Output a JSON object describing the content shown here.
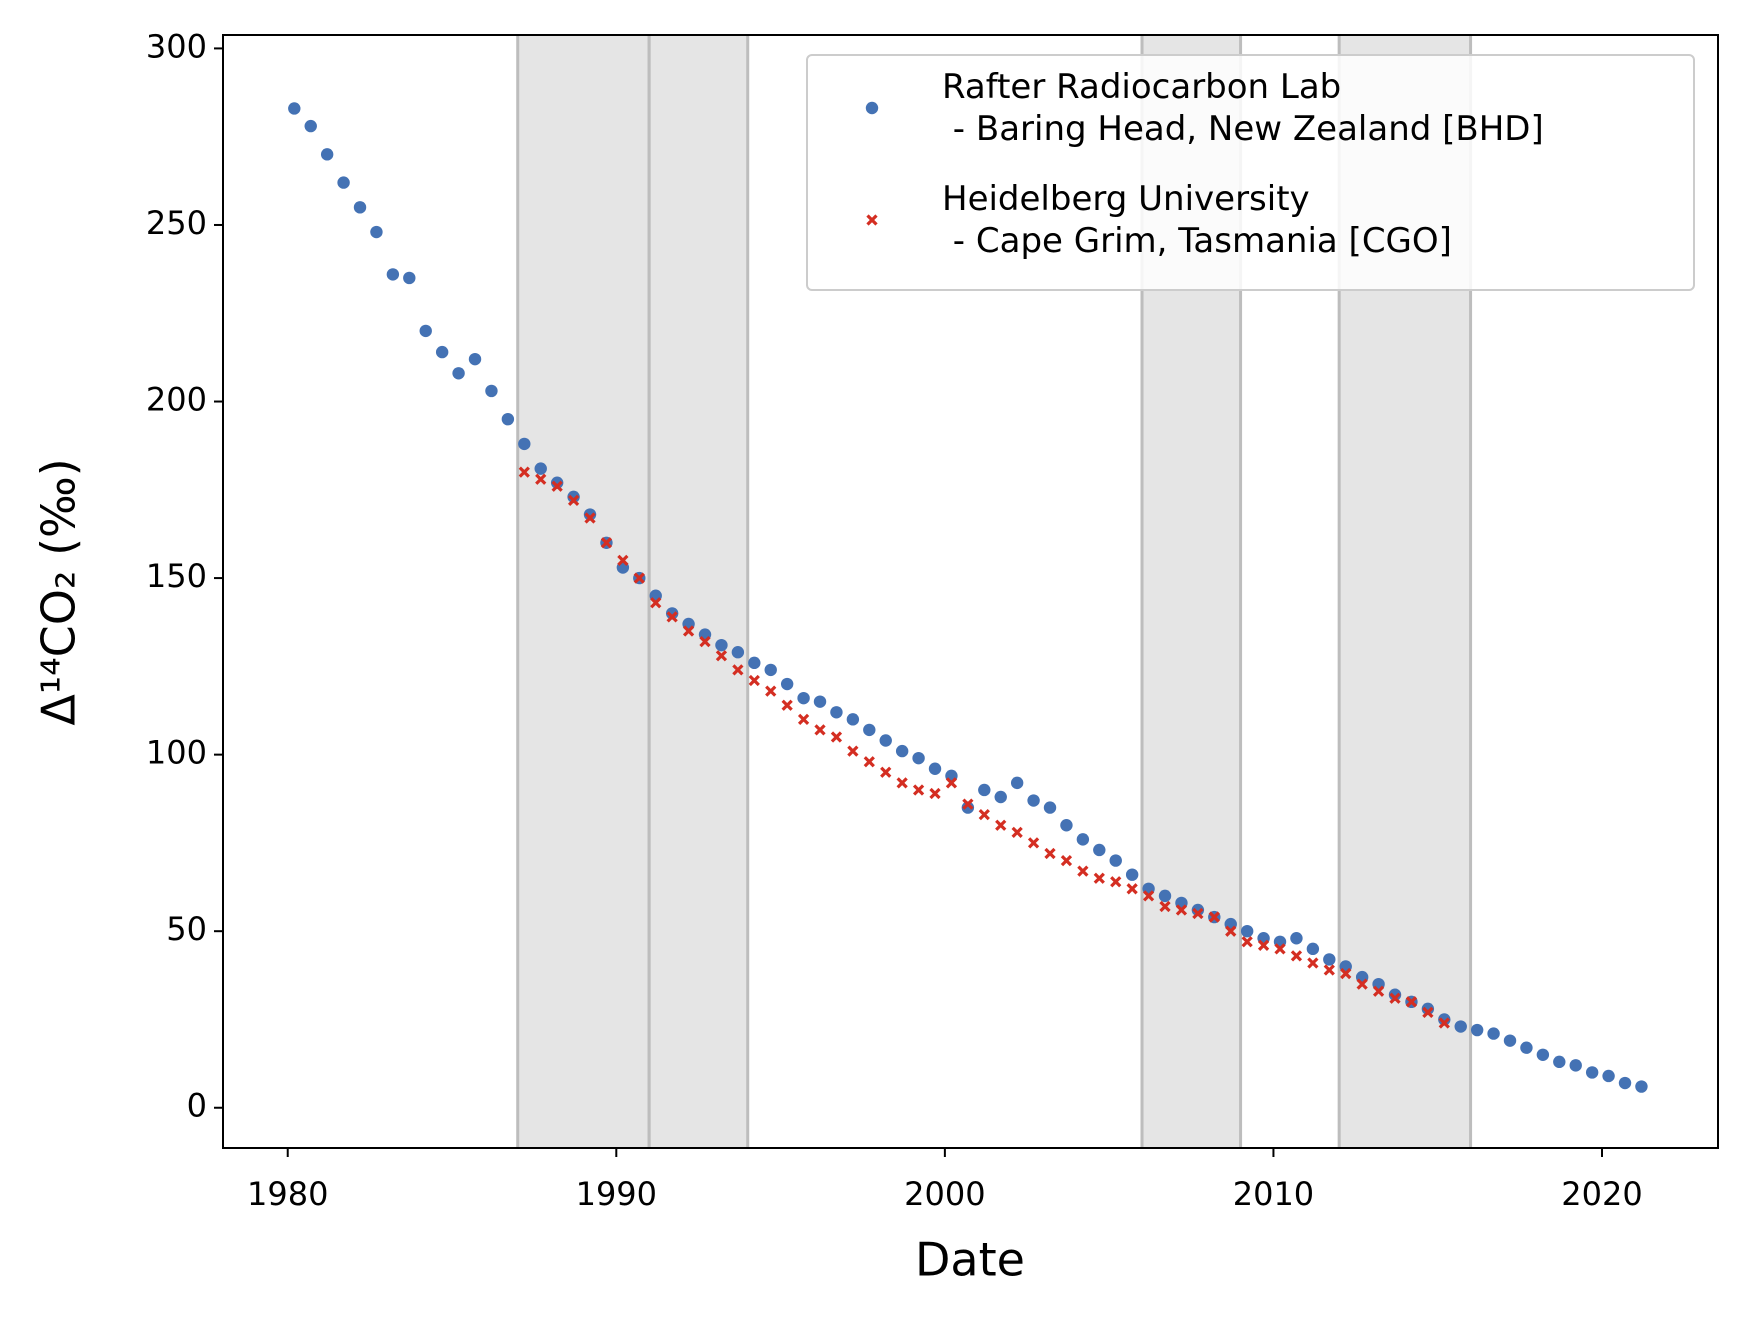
{
  "chart_data": {
    "type": "scatter",
    "xlabel": "Date",
    "ylabel": "Δ¹⁴CO₂ (‰)",
    "xlim": [
      1978.03,
      2023.53
    ],
    "ylim": [
      -11.4,
      303.8
    ],
    "xticks": [
      1980,
      1990,
      2000,
      2010,
      2020
    ],
    "yticks": [
      0,
      50,
      100,
      150,
      200,
      250,
      300
    ],
    "grid": false,
    "legend": "upper right",
    "shaded_regions": [
      [
        1987,
        1991
      ],
      [
        1991,
        1994
      ],
      [
        2006,
        2009
      ],
      [
        2012,
        2016
      ]
    ],
    "shade_color": "#e5e5e5",
    "series": [
      {
        "name": "Rafter Radiocarbon Lab\n - Baring Head, New Zealand [BHD]",
        "color": "#4472b4",
        "marker": "o",
        "x": [
          1980.2,
          1980.7,
          1981.2,
          1981.7,
          1982.2,
          1982.7,
          1983.2,
          1983.7,
          1984.2,
          1984.7,
          1985.2,
          1985.7,
          1986.2,
          1986.7,
          1987.2,
          1987.7,
          1988.2,
          1988.7,
          1989.2,
          1989.7,
          1990.2,
          1990.7,
          1991.2,
          1991.7,
          1992.2,
          1992.7,
          1993.2,
          1993.7,
          1994.2,
          1994.7,
          1995.2,
          1995.7,
          1996.2,
          1996.7,
          1997.2,
          1997.7,
          1998.2,
          1998.7,
          1999.2,
          1999.7,
          2000.2,
          2000.7,
          2001.2,
          2001.7,
          2002.2,
          2002.7,
          2003.2,
          2003.7,
          2004.2,
          2004.7,
          2005.2,
          2005.7,
          2006.2,
          2006.7,
          2007.2,
          2007.7,
          2008.2,
          2008.7,
          2009.2,
          2009.7,
          2010.2,
          2010.7,
          2011.2,
          2011.7,
          2012.2,
          2012.7,
          2013.2,
          2013.7,
          2014.2,
          2014.7,
          2015.2,
          2015.7,
          2016.2,
          2016.7,
          2017.2,
          2017.7,
          2018.2,
          2018.7,
          2019.2,
          2019.7,
          2020.2,
          2020.7,
          2021.2
        ],
        "values": [
          283,
          278,
          270,
          262,
          255,
          248,
          236,
          235,
          220,
          214,
          208,
          212,
          203,
          195,
          188,
          181,
          177,
          173,
          168,
          160,
          153,
          150,
          145,
          140,
          137,
          134,
          131,
          129,
          126,
          124,
          120,
          116,
          115,
          112,
          110,
          107,
          104,
          101,
          99,
          96,
          94,
          85,
          90,
          88,
          92,
          87,
          85,
          80,
          76,
          73,
          70,
          66,
          62,
          60,
          58,
          56,
          54,
          52,
          50,
          48,
          47,
          48,
          45,
          42,
          40,
          37,
          35,
          32,
          30,
          28,
          25,
          23,
          22,
          21,
          19,
          17,
          15,
          13,
          12,
          10,
          9,
          7,
          6
        ]
      },
      {
        "name": "Heidelberg University\n - Cape Grim, Tasmania [CGO]",
        "color": "#d42e22",
        "marker": "x",
        "x": [
          1987.2,
          1987.7,
          1988.2,
          1988.7,
          1989.2,
          1989.7,
          1990.2,
          1990.7,
          1991.2,
          1991.7,
          1992.2,
          1992.7,
          1993.2,
          1993.7,
          1994.2,
          1994.7,
          1995.2,
          1995.7,
          1996.2,
          1996.7,
          1997.2,
          1997.7,
          1998.2,
          1998.7,
          1999.2,
          1999.7,
          2000.2,
          2000.7,
          2001.2,
          2001.7,
          2002.2,
          2002.7,
          2003.2,
          2003.7,
          2004.2,
          2004.7,
          2005.2,
          2005.7,
          2006.2,
          2006.7,
          2007.2,
          2007.7,
          2008.2,
          2008.7,
          2009.2,
          2009.7,
          2010.2,
          2010.7,
          2011.2,
          2011.7,
          2012.2,
          2012.7,
          2013.2,
          2013.7,
          2014.2,
          2014.7,
          2015.2
        ],
        "values": [
          180,
          178,
          176,
          172,
          167,
          160,
          155,
          150,
          143,
          139,
          135,
          132,
          128,
          124,
          121,
          118,
          114,
          110,
          107,
          105,
          101,
          98,
          95,
          92,
          90,
          89,
          92,
          86,
          83,
          80,
          78,
          75,
          72,
          70,
          67,
          65,
          64,
          62,
          60,
          57,
          56,
          55,
          54,
          50,
          47,
          46,
          45,
          43,
          41,
          39,
          38,
          35,
          33,
          31,
          30,
          27,
          24
        ]
      }
    ]
  }
}
